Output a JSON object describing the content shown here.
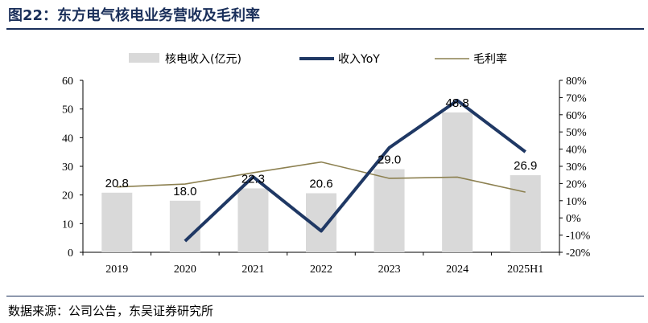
{
  "figure": {
    "title": "图22：东方电气核电业务营收及毛利率",
    "source": "数据来源：公司公告，东吴证券研究所"
  },
  "colors": {
    "bar": "#d9d9d9",
    "yoy_line": "#1f3864",
    "margin_line": "#8c8050",
    "title": "#1a2f5a"
  },
  "chart_data": {
    "type": "bar",
    "categories": [
      "2019",
      "2020",
      "2021",
      "2022",
      "2023",
      "2024",
      "2025H1"
    ],
    "series": [
      {
        "name": "核电收入(亿元)",
        "type": "bar",
        "axis": "left",
        "values": [
          20.8,
          18.0,
          22.3,
          20.6,
          29.0,
          48.8,
          26.9
        ],
        "labels": [
          "20.8",
          "18.0",
          "22.3",
          "20.6",
          "29.0",
          "48.8",
          "26.9"
        ]
      },
      {
        "name": "收入YoY",
        "type": "line",
        "axis": "right",
        "values": [
          null,
          -13.5,
          23.9,
          -7.6,
          40.8,
          68.3,
          38.4
        ]
      },
      {
        "name": "毛利率",
        "type": "line",
        "axis": "right",
        "values": [
          18.0,
          19.7,
          26.3,
          32.5,
          23.0,
          23.7,
          15.0
        ]
      }
    ],
    "y_left": {
      "ylim": [
        0,
        60
      ],
      "ticks": [
        "0",
        "10",
        "20",
        "30",
        "40",
        "50",
        "60"
      ]
    },
    "y_right": {
      "ylim": [
        -20,
        80
      ],
      "ticks": [
        "-20%",
        "-10%",
        "0%",
        "10%",
        "20%",
        "30%",
        "40%",
        "50%",
        "60%",
        "70%",
        "80%"
      ]
    },
    "legend": "top",
    "grid": false
  }
}
